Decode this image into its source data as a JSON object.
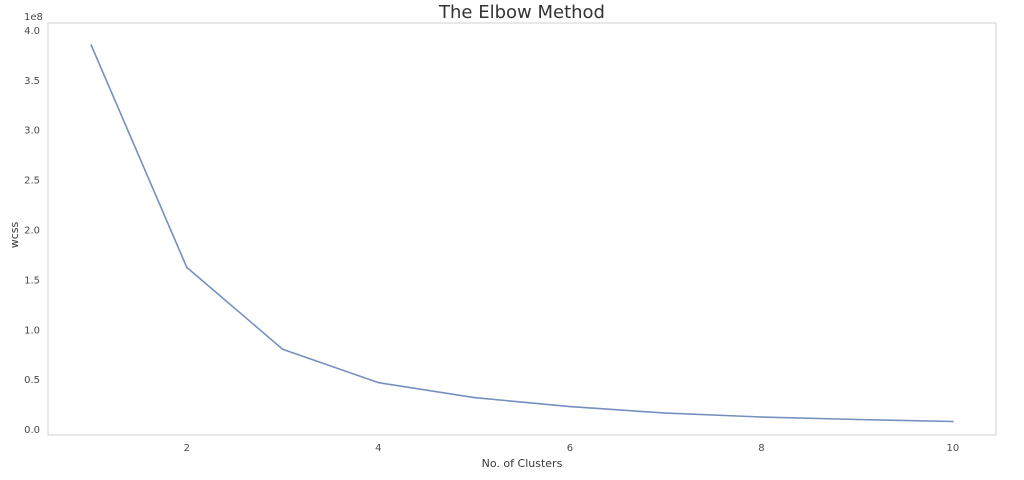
{
  "chart_data": {
    "type": "line",
    "title": "The Elbow Method",
    "xlabel": "No. of Clusters",
    "ylabel": "wcss",
    "y_offset_label": "1e8",
    "x": [
      1,
      2,
      3,
      4,
      5,
      6,
      7,
      8,
      9,
      10
    ],
    "series": [
      {
        "values": [
          385000000,
          162000000,
          80000000,
          46500000,
          31500000,
          22500000,
          16000000,
          12000000,
          9500000,
          7500000
        ]
      }
    ],
    "xlim": [
      0.55,
      10.45
    ],
    "ylim": [
      -0.06,
      4.07
    ],
    "y_scale": 100000000,
    "xticks": [
      2,
      4,
      6,
      8,
      10
    ],
    "xtick_labels": [
      "2",
      "4",
      "6",
      "8",
      "10"
    ],
    "yticks": [
      0.0,
      0.5,
      1.0,
      1.5,
      2.0,
      2.5,
      3.0,
      3.5,
      4.0
    ],
    "ytick_labels": [
      "0.0",
      "0.5",
      "1.0",
      "1.5",
      "2.0",
      "2.5",
      "3.0",
      "3.5",
      "4.0"
    ],
    "grid": false,
    "line_color": "#7590bf",
    "frame_color": "#d0d0d0"
  }
}
